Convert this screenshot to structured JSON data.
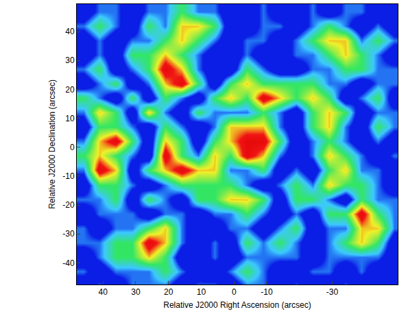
{
  "chart_data": {
    "type": "heatmap",
    "xlabel": "Relative J2000 Right Ascension (arcsec)",
    "ylabel": "Relative J2000 Declination (arcsec)",
    "x": [
      46,
      41,
      36,
      31,
      26,
      21,
      16,
      11,
      6,
      1,
      -4,
      -9,
      -14,
      -19,
      -24,
      -29,
      -34,
      -39,
      -44,
      -49
    ],
    "y": [
      47,
      42,
      37,
      32,
      27,
      22,
      17,
      12,
      7,
      2,
      -3,
      -8,
      -13,
      -18,
      -23,
      -28,
      -33,
      -38,
      -43,
      -48
    ],
    "z": [
      [
        0,
        1,
        1,
        0,
        1,
        1,
        2,
        1,
        1,
        0,
        0,
        1,
        0,
        0,
        1,
        0,
        1,
        1,
        0,
        0
      ],
      [
        1,
        2,
        1,
        0,
        2,
        1,
        3,
        3,
        2,
        0,
        0,
        1,
        1,
        0,
        1,
        2,
        1,
        0,
        1,
        0
      ],
      [
        0,
        1,
        0,
        1,
        1,
        2,
        3,
        2,
        1,
        0,
        1,
        1,
        0,
        1,
        2,
        3,
        3,
        1,
        2,
        1
      ],
      [
        0,
        1,
        0,
        2,
        2,
        3,
        2,
        1,
        0,
        0,
        1,
        0,
        0,
        1,
        1,
        2,
        3,
        2,
        1,
        0
      ],
      [
        1,
        2,
        0,
        1,
        2,
        4,
        3,
        1,
        0,
        0,
        2,
        1,
        0,
        0,
        1,
        1,
        2,
        2,
        1,
        1
      ],
      [
        0,
        1,
        2,
        0,
        1,
        3,
        4,
        2,
        0,
        2,
        3,
        2,
        2,
        2,
        2,
        1,
        1,
        0,
        1,
        1
      ],
      [
        2,
        1,
        0,
        2,
        0,
        2,
        1,
        0,
        2,
        3,
        2,
        4,
        3,
        2,
        3,
        2,
        0,
        1,
        2,
        0
      ],
      [
        1,
        3,
        2,
        0,
        3,
        1,
        0,
        2,
        1,
        1,
        1,
        2,
        1,
        0,
        2,
        3,
        2,
        0,
        1,
        1
      ],
      [
        0,
        2,
        2,
        1,
        0,
        2,
        1,
        0,
        1,
        3,
        3,
        3,
        1,
        0,
        2,
        3,
        1,
        0,
        2,
        1
      ],
      [
        1,
        3,
        4,
        2,
        0,
        3,
        2,
        0,
        2,
        3,
        4,
        4,
        2,
        0,
        1,
        2,
        1,
        0,
        1,
        0
      ],
      [
        2,
        3,
        2,
        1,
        0,
        4,
        2,
        1,
        3,
        2,
        4,
        3,
        1,
        0,
        1,
        3,
        2,
        1,
        0,
        1
      ],
      [
        1,
        4,
        3,
        0,
        2,
        3,
        4,
        3,
        3,
        1,
        1,
        2,
        0,
        1,
        0,
        2,
        3,
        1,
        1,
        0
      ],
      [
        0,
        2,
        2,
        1,
        0,
        1,
        2,
        2,
        2,
        2,
        1,
        0,
        1,
        2,
        1,
        3,
        2,
        2,
        1,
        0
      ],
      [
        1,
        1,
        2,
        0,
        2,
        1,
        0,
        2,
        2,
        3,
        3,
        2,
        0,
        2,
        2,
        1,
        0,
        2,
        1,
        1
      ],
      [
        0,
        1,
        1,
        1,
        0,
        1,
        1,
        0,
        1,
        1,
        2,
        1,
        0,
        1,
        0,
        2,
        2,
        4,
        2,
        1
      ],
      [
        1,
        0,
        1,
        1,
        2,
        3,
        1,
        0,
        0,
        1,
        1,
        0,
        1,
        2,
        0,
        1,
        1,
        3,
        3,
        1
      ],
      [
        1,
        1,
        2,
        2,
        4,
        3,
        1,
        0,
        1,
        0,
        2,
        1,
        2,
        1,
        0,
        1,
        2,
        3,
        2,
        0
      ],
      [
        0,
        1,
        2,
        2,
        3,
        2,
        0,
        0,
        1,
        0,
        1,
        1,
        1,
        1,
        0,
        1,
        1,
        1,
        1,
        0
      ],
      [
        1,
        0,
        1,
        1,
        1,
        2,
        1,
        0,
        0,
        1,
        2,
        1,
        0,
        0,
        1,
        1,
        0,
        1,
        0,
        0
      ],
      [
        0,
        1,
        0,
        1,
        1,
        1,
        0,
        1,
        1,
        0,
        1,
        1,
        0,
        1,
        0,
        0,
        1,
        0,
        0,
        0
      ]
    ],
    "xlim": [
      48,
      -50
    ],
    "ylim": [
      -47.5,
      49.5
    ],
    "xticks": [
      40,
      30,
      20,
      10,
      0,
      -10,
      -30
    ],
    "yticks": [
      40,
      30,
      20,
      10,
      0,
      -10,
      -20,
      -30,
      -40
    ]
  }
}
